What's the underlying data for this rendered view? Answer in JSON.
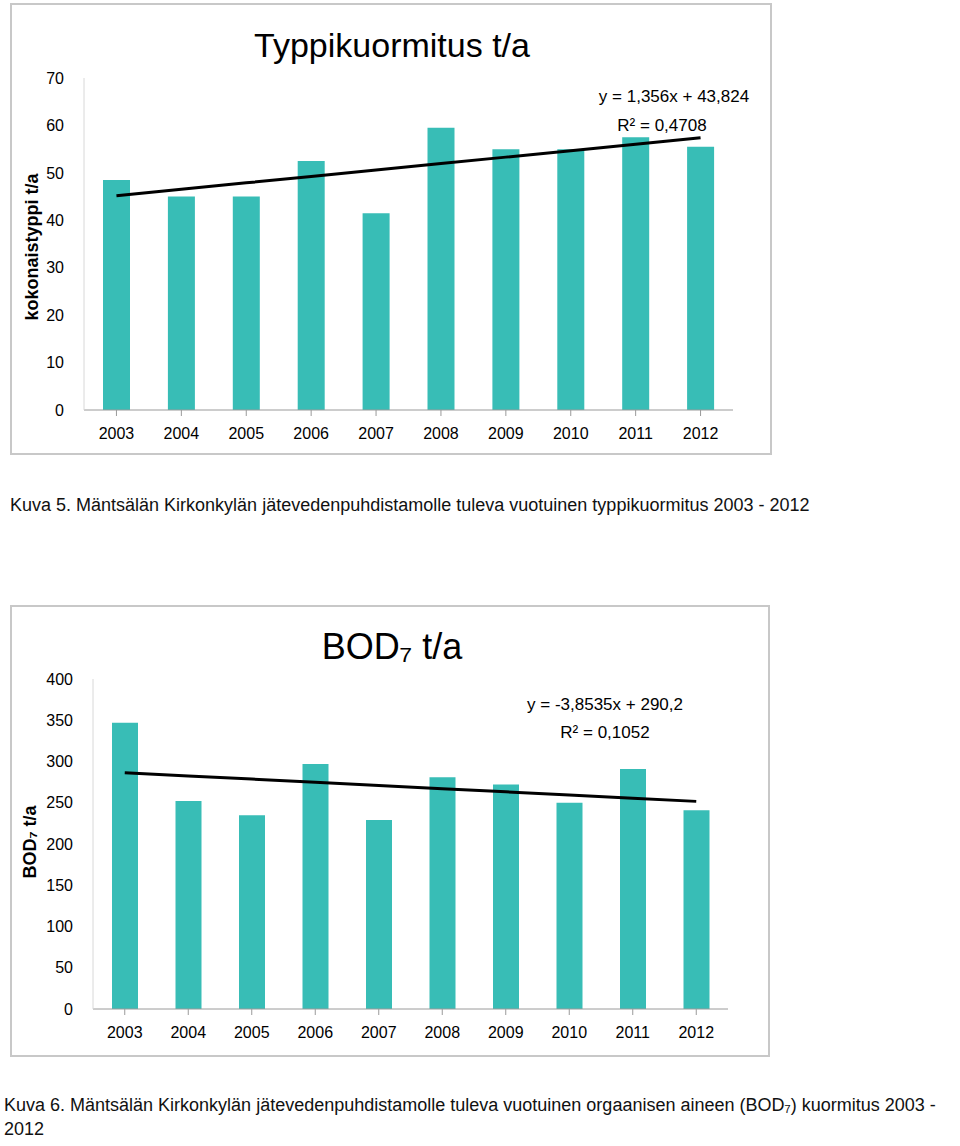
{
  "chart_data": [
    {
      "type": "bar",
      "title": "Typpikuormitus t/a",
      "y_label": "kokonaistyppi t/a",
      "categories": [
        "2003",
        "2004",
        "2005",
        "2006",
        "2007",
        "2008",
        "2009",
        "2010",
        "2011",
        "2012"
      ],
      "values": [
        48.5,
        45,
        45,
        52.5,
        41.5,
        59.5,
        55,
        55,
        57.5,
        55.5
      ],
      "color": "#38bdb6",
      "ylim": [
        0,
        70
      ],
      "yticks": [
        0,
        10,
        20,
        30,
        40,
        50,
        60,
        70
      ],
      "trendline": {
        "slope": 1.356,
        "intercept": 43.824,
        "equation": "y = 1,356x + 43,824",
        "r_squared_label": "R² = 0,4708",
        "color": "#000000"
      },
      "caption": "Kuva 5. Mäntsälän Kirkonkylän jätevedenpuhdistamolle tuleva vuotuinen typpikuormitus 2003 - 2012"
    },
    {
      "type": "bar",
      "title": "BOD₇ t/a",
      "y_label": "BOD₇ t/a",
      "categories": [
        "2003",
        "2004",
        "2005",
        "2006",
        "2007",
        "2008",
        "2009",
        "2010",
        "2011",
        "2012"
      ],
      "values": [
        347,
        252,
        235,
        297,
        229,
        281,
        272,
        250,
        291,
        241
      ],
      "color": "#38bdb6",
      "ylim": [
        0,
        400
      ],
      "yticks": [
        0,
        50,
        100,
        150,
        200,
        250,
        300,
        350,
        400
      ],
      "trendline": {
        "slope": -3.8535,
        "intercept": 290.2,
        "equation": "y = -3,8535x + 290,2",
        "r_squared_label": "R² = 0,1052",
        "color": "#000000"
      },
      "caption": "Kuva 6. Mäntsälän Kirkonkylän jätevedenpuhdistamolle tuleva vuotuinen orgaanisen aineen (BOD₇) kuormitus 2003 - 2012"
    }
  ]
}
